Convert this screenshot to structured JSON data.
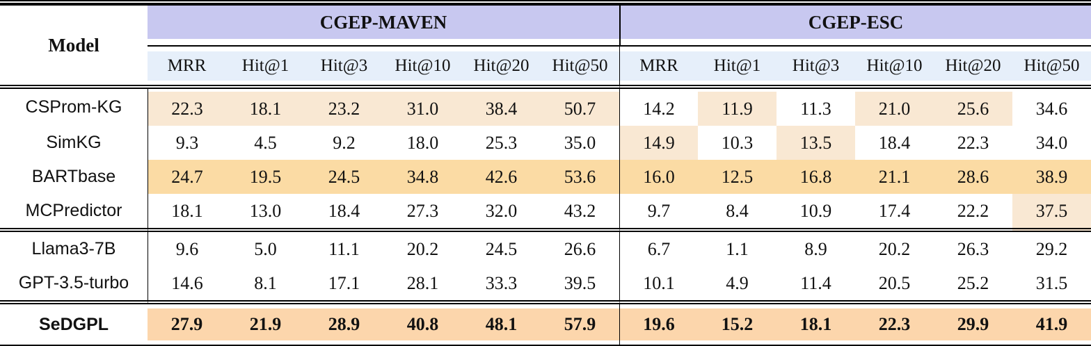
{
  "table": {
    "model_header": "Model",
    "groups": [
      {
        "label": "CGEP-MAVEN",
        "metrics": [
          "MRR",
          "Hit@1",
          "Hit@3",
          "Hit@10",
          "Hit@20",
          "Hit@50"
        ]
      },
      {
        "label": "CGEP-ESC",
        "metrics": [
          "MRR",
          "Hit@1",
          "Hit@3",
          "Hit@10",
          "Hit@20",
          "Hit@50"
        ]
      }
    ],
    "rows": [
      {
        "model": "CSProm-KG",
        "bold": false,
        "group_separator_after": false,
        "values": [
          "22.3",
          "18.1",
          "23.2",
          "31.0",
          "38.4",
          "50.7",
          "14.2",
          "11.9",
          "11.3",
          "21.0",
          "25.6",
          "34.6"
        ],
        "highlights": [
          "light",
          "light",
          "light",
          "light",
          "light",
          "light",
          "none",
          "light",
          "none",
          "light",
          "light",
          "none"
        ]
      },
      {
        "model": "SimKG",
        "bold": false,
        "group_separator_after": false,
        "values": [
          "9.3",
          "4.5",
          "9.2",
          "18.0",
          "25.3",
          "35.0",
          "14.9",
          "10.3",
          "13.5",
          "18.4",
          "22.3",
          "34.0"
        ],
        "highlights": [
          "none",
          "none",
          "none",
          "none",
          "none",
          "none",
          "light",
          "none",
          "light",
          "none",
          "none",
          "none"
        ]
      },
      {
        "model": "BARTbase",
        "bold": false,
        "group_separator_after": false,
        "values": [
          "24.7",
          "19.5",
          "24.5",
          "34.8",
          "42.6",
          "53.6",
          "16.0",
          "12.5",
          "16.8",
          "21.1",
          "28.6",
          "38.9"
        ],
        "highlights": [
          "mid",
          "mid",
          "mid",
          "mid",
          "mid",
          "mid",
          "mid",
          "mid",
          "mid",
          "mid",
          "mid",
          "mid"
        ]
      },
      {
        "model": "MCPredictor",
        "bold": false,
        "group_separator_after": true,
        "values": [
          "18.1",
          "13.0",
          "18.4",
          "27.3",
          "32.0",
          "43.2",
          "9.7",
          "8.4",
          "10.9",
          "17.4",
          "22.2",
          "37.5"
        ],
        "highlights": [
          "none",
          "none",
          "none",
          "none",
          "none",
          "none",
          "none",
          "none",
          "none",
          "none",
          "none",
          "light"
        ]
      },
      {
        "model": "Llama3-7B",
        "bold": false,
        "group_separator_after": false,
        "values": [
          "9.6",
          "5.0",
          "11.1",
          "20.2",
          "24.5",
          "26.6",
          "6.7",
          "1.1",
          "8.9",
          "20.2",
          "26.3",
          "29.2"
        ],
        "highlights": [
          "none",
          "none",
          "none",
          "none",
          "none",
          "none",
          "none",
          "none",
          "none",
          "none",
          "none",
          "none"
        ]
      },
      {
        "model": "GPT-3.5-turbo",
        "bold": false,
        "group_separator_after": true,
        "values": [
          "14.6",
          "8.1",
          "17.1",
          "28.1",
          "33.3",
          "39.5",
          "10.1",
          "4.9",
          "11.4",
          "20.5",
          "25.2",
          "31.5"
        ],
        "highlights": [
          "none",
          "none",
          "none",
          "none",
          "none",
          "none",
          "none",
          "none",
          "none",
          "none",
          "none",
          "none"
        ]
      },
      {
        "model": "SeDGPL",
        "bold": true,
        "group_separator_after": false,
        "values": [
          "27.9",
          "21.9",
          "28.9",
          "40.8",
          "48.1",
          "57.9",
          "19.6",
          "15.2",
          "18.1",
          "22.3",
          "29.9",
          "41.9"
        ],
        "highlights": [
          "strong",
          "strong",
          "strong",
          "strong",
          "strong",
          "strong",
          "strong",
          "strong",
          "strong",
          "strong",
          "strong",
          "strong"
        ]
      }
    ]
  },
  "colors": {
    "group_header_bg": "#c8c8f0",
    "metric_header_bg": "#e6effa",
    "highlight_light": "#f9e8d3",
    "highlight_mid": "#fbdba4",
    "highlight_strong": "#fcd6ac",
    "rule_color": "#000000",
    "text_color": "#111111"
  }
}
